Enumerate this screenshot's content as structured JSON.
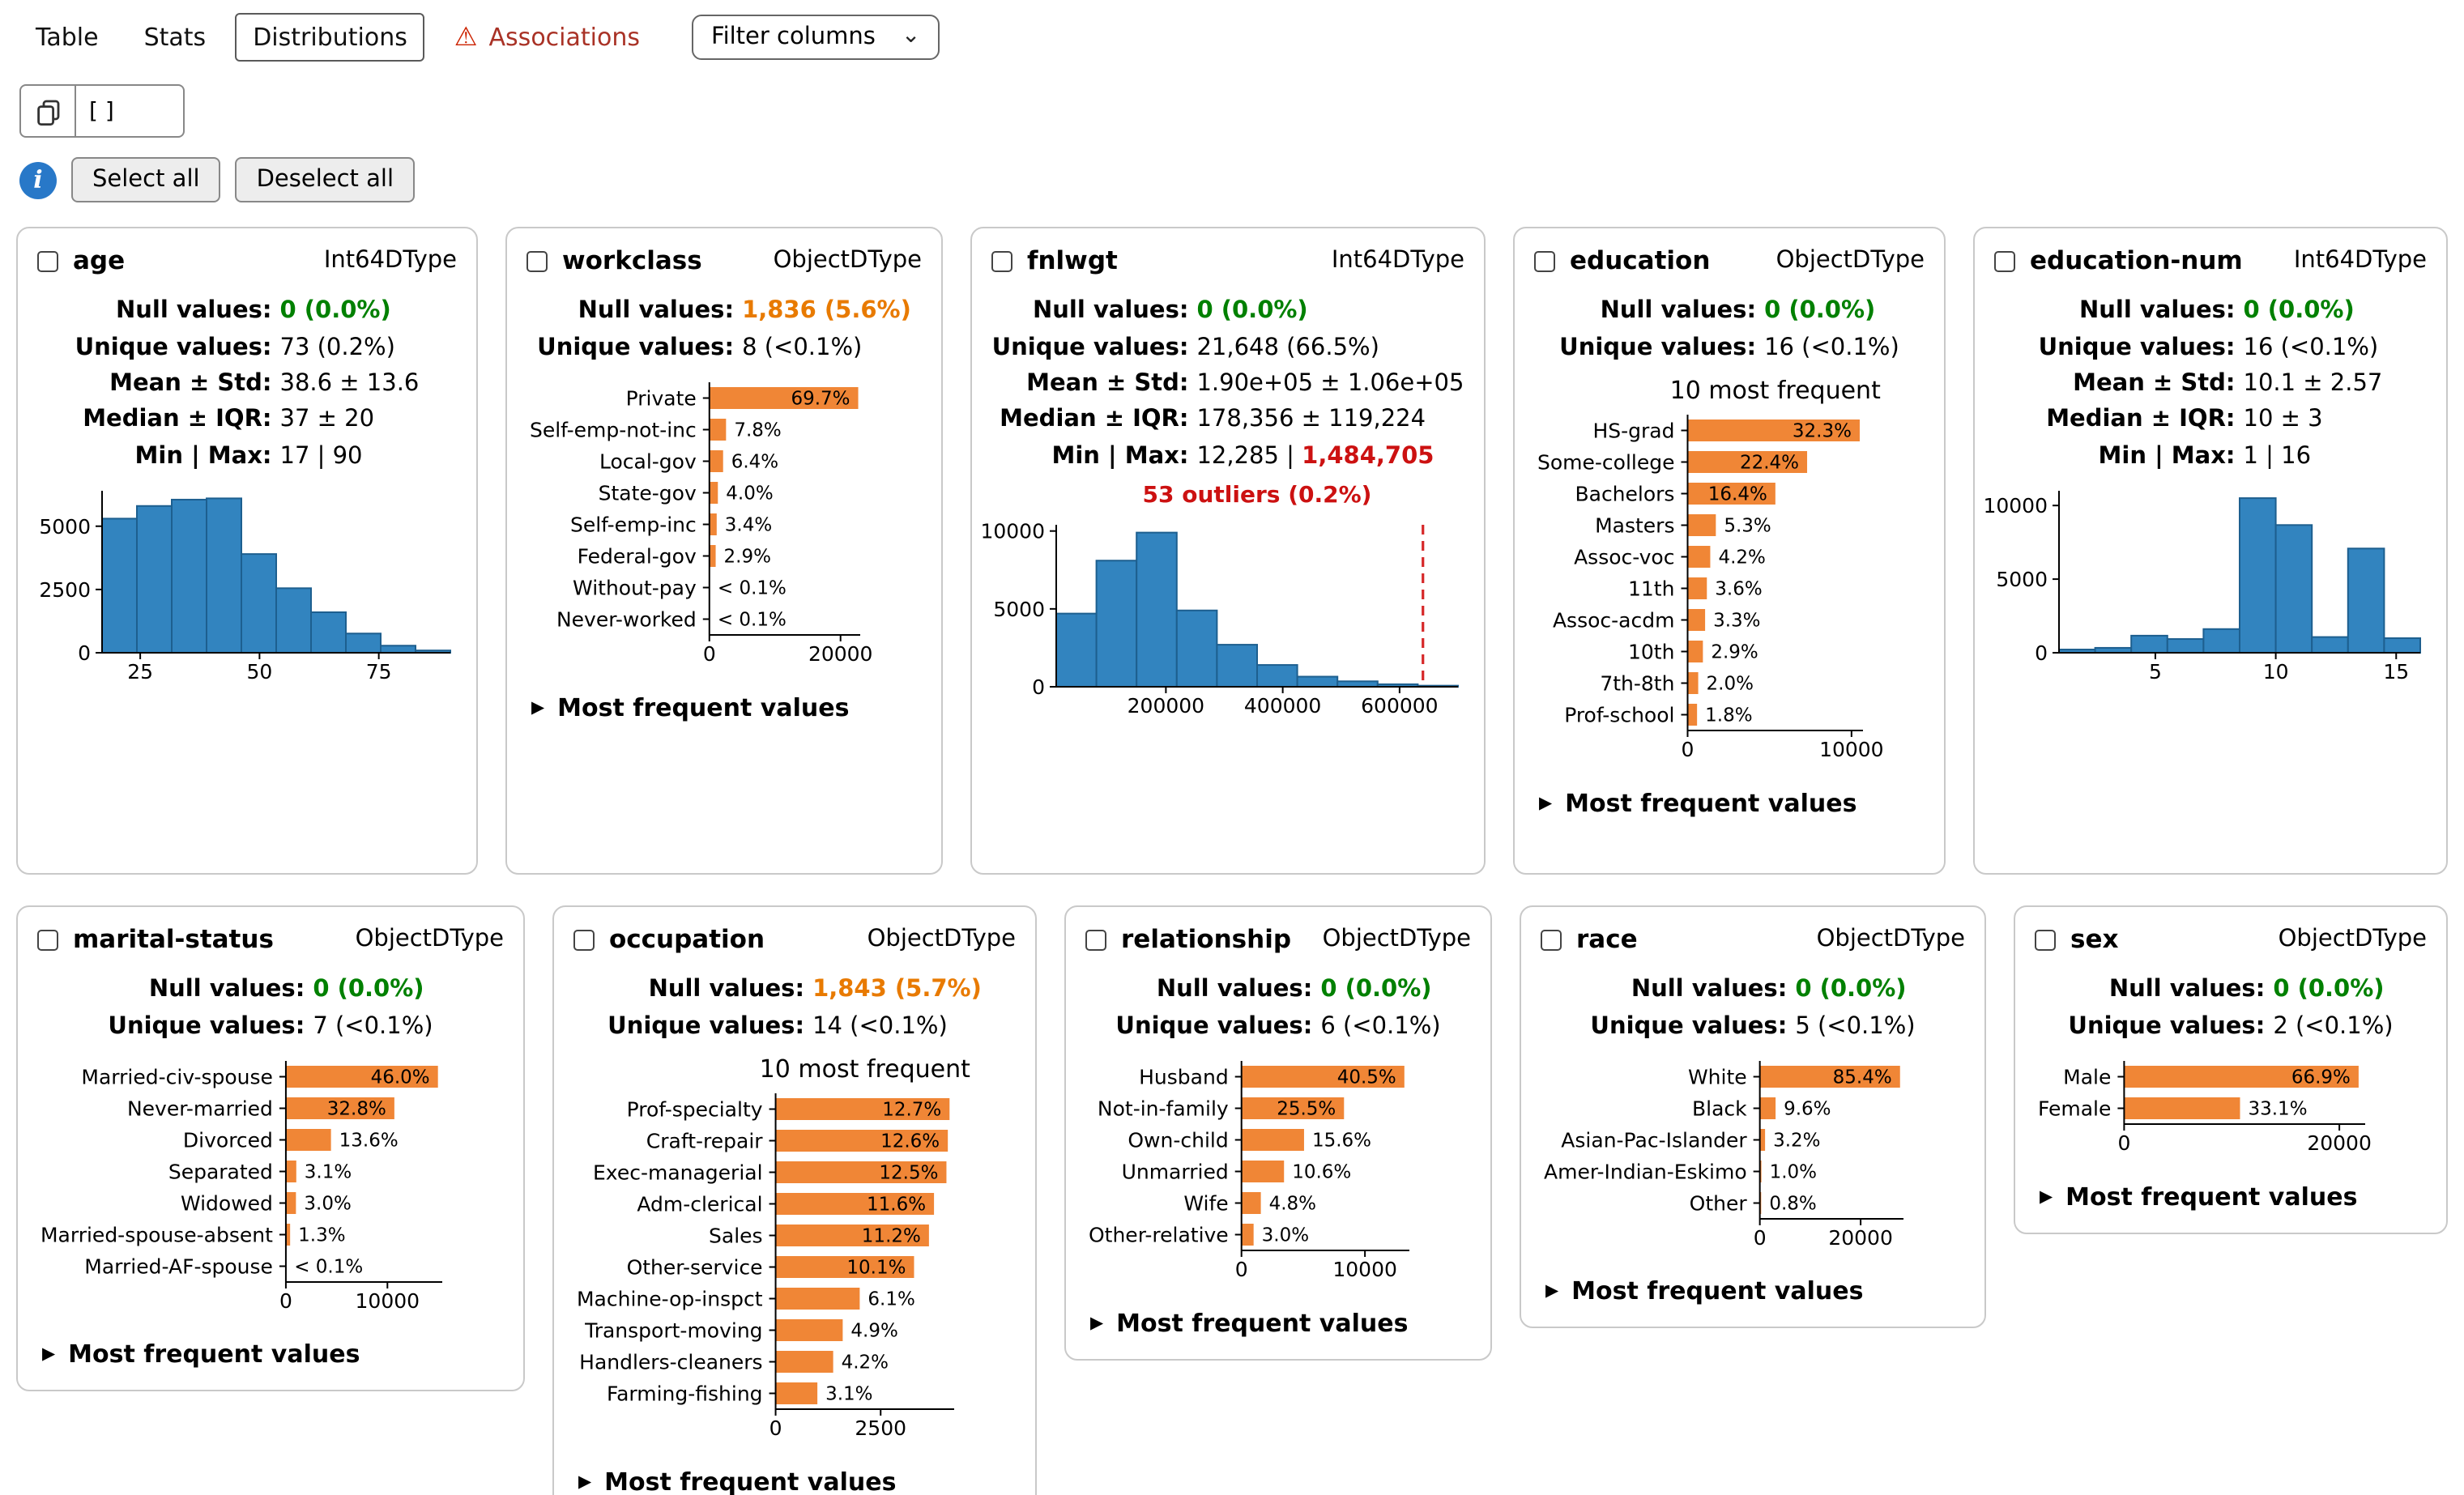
{
  "tabs": {
    "table": "Table",
    "stats": "Stats",
    "distributions": "Distributions",
    "associations": "Associations"
  },
  "filter": {
    "label": "Filter columns"
  },
  "selection": {
    "value": "[ ]"
  },
  "toolbar": {
    "select_all": "Select all",
    "deselect_all": "Deselect all"
  },
  "labels": {
    "most_frequent": "Most frequent values"
  },
  "icons": {
    "warning": "⚠",
    "chevron_down": "⌄",
    "info": "i",
    "triangle_right": "▶",
    "copy": "double-square-outline"
  },
  "colors": {
    "histogram_blue": "#3284bf",
    "histogram_edge": "#1d5f8f",
    "bar_orange": "#f08636",
    "null_ok_green": "#008000",
    "null_warn_orange": "#e87a00",
    "error_red": "#cc1111",
    "outlier_line_red": "#d62728",
    "associations_red": "#a93226",
    "info_blue": "#2878c8"
  },
  "cards": [
    {
      "name": "age",
      "dtype": "Int64DType",
      "stats": [
        {
          "label": "Null values:",
          "parts": [
            {
              "t": "0 (0.0%)",
              "c": "ok"
            }
          ]
        },
        {
          "label": "Unique values:",
          "parts": [
            {
              "t": "73 (0.2%)"
            }
          ]
        },
        {
          "label": "Mean ± Std:",
          "parts": [
            {
              "t": "38.6 ± 13.6"
            }
          ]
        },
        {
          "label": "Median ± IQR:",
          "parts": [
            {
              "t": "37 ± 20"
            }
          ]
        },
        {
          "label": "Min | Max:",
          "parts": [
            {
              "t": "17 | 90"
            }
          ]
        }
      ],
      "chart": {
        "type": "histogram",
        "bins": [
          5300,
          5800,
          6050,
          6100,
          3900,
          2550,
          1600,
          760,
          280,
          90
        ],
        "xmin": 17,
        "xmax": 90,
        "ymax": 6400,
        "yticks": [
          0,
          2500,
          5000
        ],
        "xticks": [
          25,
          50,
          75
        ]
      },
      "most_frequent": false
    },
    {
      "name": "workclass",
      "dtype": "ObjectDType",
      "stats": [
        {
          "label": "Null values:",
          "parts": [
            {
              "t": "1,836 (5.6%)",
              "c": "warn"
            }
          ]
        },
        {
          "label": "Unique values:",
          "parts": [
            {
              "t": "8 (<0.1%)"
            }
          ]
        }
      ],
      "chart": {
        "type": "hbar",
        "xmax": 23000,
        "xticks": [
          {
            "v": 0,
            "label": "0"
          },
          {
            "v": 20000,
            "label": "20000"
          }
        ],
        "rows": [
          {
            "label": "Private",
            "value": 22696,
            "pct": "69.7%"
          },
          {
            "label": "Self-emp-not-inc",
            "value": 2541,
            "pct": "7.8%"
          },
          {
            "label": "Local-gov",
            "value": 2093,
            "pct": "6.4%"
          },
          {
            "label": "State-gov",
            "value": 1298,
            "pct": "4.0%"
          },
          {
            "label": "Self-emp-inc",
            "value": 1116,
            "pct": "3.4%"
          },
          {
            "label": "Federal-gov",
            "value": 960,
            "pct": "2.9%"
          },
          {
            "label": "Without-pay",
            "value": 14,
            "pct": "< 0.1%"
          },
          {
            "label": "Never-worked",
            "value": 7,
            "pct": "< 0.1%"
          }
        ]
      },
      "most_frequent": true
    },
    {
      "name": "fnlwgt",
      "dtype": "Int64DType",
      "stats": [
        {
          "label": "Null values:",
          "parts": [
            {
              "t": "0 (0.0%)",
              "c": "ok"
            }
          ]
        },
        {
          "label": "Unique values:",
          "parts": [
            {
              "t": "21,648 (66.5%)"
            }
          ]
        },
        {
          "label": "Mean ± Std:",
          "parts": [
            {
              "t": "1.90e+05 ± 1.06e+05"
            }
          ]
        },
        {
          "label": "Median ± IQR:",
          "parts": [
            {
              "t": "178,356 ± 119,224"
            }
          ]
        },
        {
          "label": "Min | Max:",
          "parts": [
            {
              "t": "12,285 | "
            },
            {
              "t": "1,484,705",
              "c": "bad"
            }
          ]
        }
      ],
      "annotation": "53 outliers (0.2%)",
      "chart": {
        "type": "histogram",
        "bins": [
          4700,
          8100,
          9900,
          4900,
          2700,
          1400,
          650,
          350,
          160,
          70
        ],
        "xmin": 12285,
        "xmax": 700000,
        "ymax": 10400,
        "yticks": [
          0,
          5000,
          10000
        ],
        "xticks": [
          200000,
          400000,
          600000
        ],
        "outlier_x": 640000
      },
      "most_frequent": false
    },
    {
      "name": "education",
      "dtype": "ObjectDType",
      "stats": [
        {
          "label": "Null values:",
          "parts": [
            {
              "t": "0 (0.0%)",
              "c": "ok"
            }
          ]
        },
        {
          "label": "Unique values:",
          "parts": [
            {
              "t": "16 (<0.1%)"
            }
          ]
        }
      ],
      "chart": {
        "type": "hbar",
        "title": "10 most frequent",
        "xmax": 10700,
        "xticks": [
          {
            "v": 0,
            "label": "0"
          },
          {
            "v": 10000,
            "label": "10000"
          }
        ],
        "rows": [
          {
            "label": "HS-grad",
            "value": 10501,
            "pct": "32.3%"
          },
          {
            "label": "Some-college",
            "value": 7291,
            "pct": "22.4%"
          },
          {
            "label": "Bachelors",
            "value": 5355,
            "pct": "16.4%"
          },
          {
            "label": "Masters",
            "value": 1723,
            "pct": "5.3%"
          },
          {
            "label": "Assoc-voc",
            "value": 1382,
            "pct": "4.2%"
          },
          {
            "label": "11th",
            "value": 1175,
            "pct": "3.6%"
          },
          {
            "label": "Assoc-acdm",
            "value": 1067,
            "pct": "3.3%"
          },
          {
            "label": "10th",
            "value": 933,
            "pct": "2.9%"
          },
          {
            "label": "7th-8th",
            "value": 646,
            "pct": "2.0%"
          },
          {
            "label": "Prof-school",
            "value": 576,
            "pct": "1.8%"
          }
        ]
      },
      "most_frequent": true
    },
    {
      "name": "education-num",
      "dtype": "Int64DType",
      "stats": [
        {
          "label": "Null values:",
          "parts": [
            {
              "t": "0 (0.0%)",
              "c": "ok"
            }
          ]
        },
        {
          "label": "Unique values:",
          "parts": [
            {
              "t": "16 (<0.1%)"
            }
          ]
        },
        {
          "label": "Mean ± Std:",
          "parts": [
            {
              "t": "10.1 ± 2.57"
            }
          ]
        },
        {
          "label": "Median ± IQR:",
          "parts": [
            {
              "t": "10 ± 3"
            }
          ]
        },
        {
          "label": "Min | Max:",
          "parts": [
            {
              "t": "1 | 16"
            }
          ]
        }
      ],
      "chart": {
        "type": "histogram",
        "bins": [
          219,
          333,
          1160,
          933,
          1608,
          10501,
          8673,
          1067,
          7078,
          989
        ],
        "xmin": 1,
        "xmax": 16,
        "ymax": 11000,
        "yticks": [
          0,
          5000,
          10000
        ],
        "xticks": [
          5,
          10,
          15
        ]
      },
      "most_frequent": false
    },
    {
      "name": "marital-status",
      "dtype": "ObjectDType",
      "stats": [
        {
          "label": "Null values:",
          "parts": [
            {
              "t": "0 (0.0%)",
              "c": "ok"
            }
          ]
        },
        {
          "label": "Unique values:",
          "parts": [
            {
              "t": "7 (<0.1%)"
            }
          ]
        }
      ],
      "chart": {
        "type": "hbar",
        "xmax": 15400,
        "xticks": [
          {
            "v": 0,
            "label": "0"
          },
          {
            "v": 10000,
            "label": "10000"
          }
        ],
        "rows": [
          {
            "label": "Married-civ-spouse",
            "value": 14976,
            "pct": "46.0%"
          },
          {
            "label": "Never-married",
            "value": 10683,
            "pct": "32.8%"
          },
          {
            "label": "Divorced",
            "value": 4443,
            "pct": "13.6%"
          },
          {
            "label": "Separated",
            "value": 1025,
            "pct": "3.1%"
          },
          {
            "label": "Widowed",
            "value": 993,
            "pct": "3.0%"
          },
          {
            "label": "Married-spouse-absent",
            "value": 418,
            "pct": "1.3%"
          },
          {
            "label": "Married-AF-spouse",
            "value": 23,
            "pct": "< 0.1%"
          }
        ]
      },
      "most_frequent": true
    },
    {
      "name": "occupation",
      "dtype": "ObjectDType",
      "stats": [
        {
          "label": "Null values:",
          "parts": [
            {
              "t": "1,843 (5.7%)",
              "c": "warn"
            }
          ]
        },
        {
          "label": "Unique values:",
          "parts": [
            {
              "t": "14 (<0.1%)"
            }
          ]
        }
      ],
      "chart": {
        "type": "hbar",
        "title": "10 most frequent",
        "xmax": 4250,
        "xticks": [
          {
            "v": 0,
            "label": "0"
          },
          {
            "v": 2500,
            "label": "2500"
          }
        ],
        "rows": [
          {
            "label": "Prof-specialty",
            "value": 4140,
            "pct": "12.7%"
          },
          {
            "label": "Craft-repair",
            "value": 4099,
            "pct": "12.6%"
          },
          {
            "label": "Exec-managerial",
            "value": 4066,
            "pct": "12.5%"
          },
          {
            "label": "Adm-clerical",
            "value": 3770,
            "pct": "11.6%"
          },
          {
            "label": "Sales",
            "value": 3650,
            "pct": "11.2%"
          },
          {
            "label": "Other-service",
            "value": 3295,
            "pct": "10.1%"
          },
          {
            "label": "Machine-op-inspct",
            "value": 2002,
            "pct": "6.1%"
          },
          {
            "label": "Transport-moving",
            "value": 1597,
            "pct": "4.9%"
          },
          {
            "label": "Handlers-cleaners",
            "value": 1370,
            "pct": "4.2%"
          },
          {
            "label": "Farming-fishing",
            "value": 994,
            "pct": "3.1%"
          }
        ]
      },
      "most_frequent": true
    },
    {
      "name": "relationship",
      "dtype": "ObjectDType",
      "stats": [
        {
          "label": "Null values:",
          "parts": [
            {
              "t": "0 (0.0%)",
              "c": "ok"
            }
          ]
        },
        {
          "label": "Unique values:",
          "parts": [
            {
              "t": "6 (<0.1%)"
            }
          ]
        }
      ],
      "chart": {
        "type": "hbar",
        "xmax": 13600,
        "xticks": [
          {
            "v": 0,
            "label": "0"
          },
          {
            "v": 10000,
            "label": "10000"
          }
        ],
        "rows": [
          {
            "label": "Husband",
            "value": 13193,
            "pct": "40.5%"
          },
          {
            "label": "Not-in-family",
            "value": 8305,
            "pct": "25.5%"
          },
          {
            "label": "Own-child",
            "value": 5068,
            "pct": "15.6%"
          },
          {
            "label": "Unmarried",
            "value": 3446,
            "pct": "10.6%"
          },
          {
            "label": "Wife",
            "value": 1568,
            "pct": "4.8%"
          },
          {
            "label": "Other-relative",
            "value": 981,
            "pct": "3.0%"
          }
        ]
      },
      "most_frequent": true
    },
    {
      "name": "race",
      "dtype": "ObjectDType",
      "stats": [
        {
          "label": "Null values:",
          "parts": [
            {
              "t": "0 (0.0%)",
              "c": "ok"
            }
          ]
        },
        {
          "label": "Unique values:",
          "parts": [
            {
              "t": "5 (<0.1%)"
            }
          ]
        }
      ],
      "chart": {
        "type": "hbar",
        "xmax": 28500,
        "xticks": [
          {
            "v": 0,
            "label": "0"
          },
          {
            "v": 20000,
            "label": "20000"
          }
        ],
        "rows": [
          {
            "label": "White",
            "value": 27816,
            "pct": "85.4%"
          },
          {
            "label": "Black",
            "value": 3124,
            "pct": "9.6%"
          },
          {
            "label": "Asian-Pac-Islander",
            "value": 1039,
            "pct": "3.2%"
          },
          {
            "label": "Amer-Indian-Eskimo",
            "value": 311,
            "pct": "1.0%"
          },
          {
            "label": "Other",
            "value": 271,
            "pct": "0.8%"
          }
        ]
      },
      "most_frequent": true
    },
    {
      "name": "sex",
      "dtype": "ObjectDType",
      "stats": [
        {
          "label": "Null values:",
          "parts": [
            {
              "t": "0 (0.0%)",
              "c": "ok"
            }
          ]
        },
        {
          "label": "Unique values:",
          "parts": [
            {
              "t": "2 (<0.1%)"
            }
          ]
        }
      ],
      "chart": {
        "type": "hbar",
        "xmax": 22400,
        "xticks": [
          {
            "v": 0,
            "label": "0"
          },
          {
            "v": 20000,
            "label": "20000"
          }
        ],
        "rows": [
          {
            "label": "Male",
            "value": 21790,
            "pct": "66.9%"
          },
          {
            "label": "Female",
            "value": 10771,
            "pct": "33.1%"
          }
        ]
      },
      "most_frequent": true
    }
  ]
}
